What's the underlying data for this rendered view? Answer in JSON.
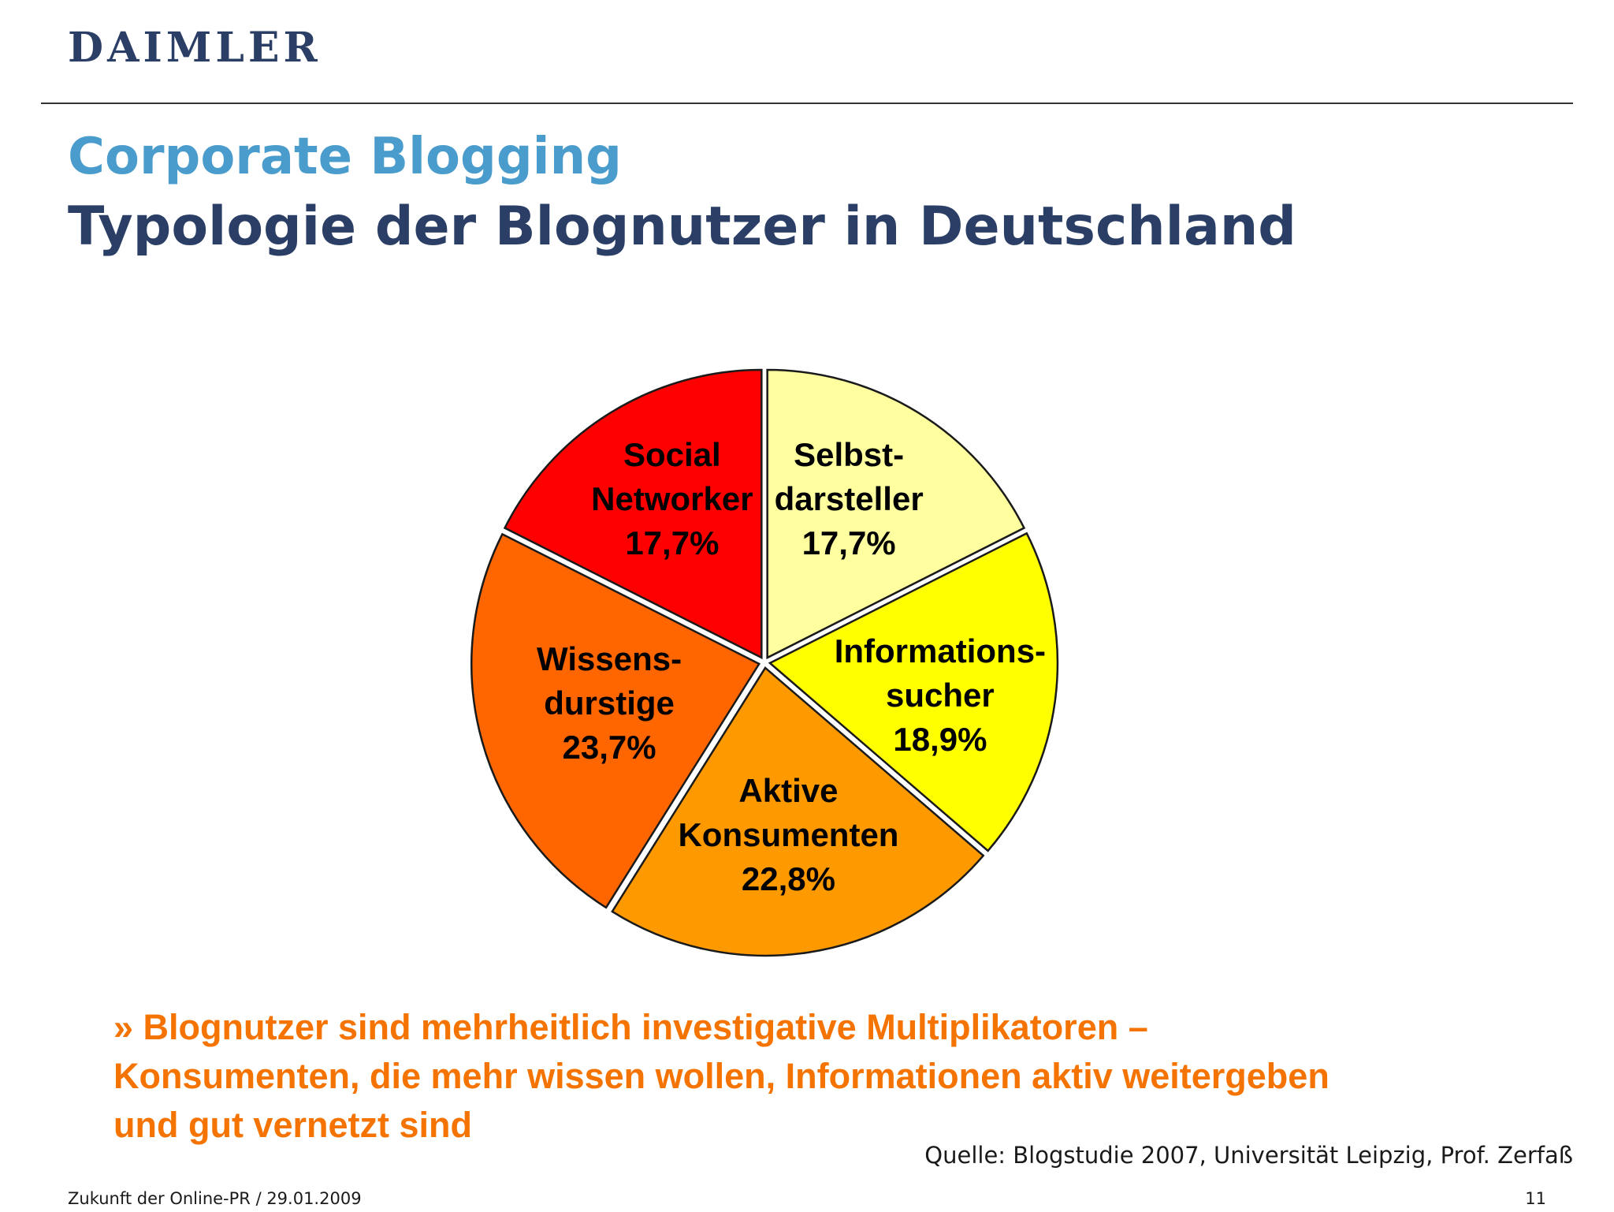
{
  "header": {
    "logo_text": "DAIMLER",
    "title": "Corporate Blogging",
    "subtitle": "Typologie der Blognutzer in Deutschland"
  },
  "chart_data": {
    "type": "pie",
    "start_angle_deg": 0,
    "direction": "clockwise",
    "slices": [
      {
        "label_lines": [
          "Selbst-",
          "darsteller"
        ],
        "value": 17.7,
        "value_label": "17,7%",
        "color": "#ffffa0"
      },
      {
        "label_lines": [
          "Informations-",
          "sucher"
        ],
        "value": 18.9,
        "value_label": "18,9%",
        "color": "#ffff00"
      },
      {
        "label_lines": [
          "Aktive",
          "Konsumenten"
        ],
        "value": 22.8,
        "value_label": "22,8%",
        "color": "#ff9900"
      },
      {
        "label_lines": [
          "Wissens-",
          "durstige"
        ],
        "value": 23.7,
        "value_label": "23,7%",
        "color": "#ff6600"
      },
      {
        "label_lines": [
          "Social",
          "Networker"
        ],
        "value": 17.7,
        "value_label": "17,7%",
        "color": "#ff0000"
      }
    ]
  },
  "conclusion": {
    "lines": [
      "» Blognutzer sind mehrheitlich investigative Multiplikatoren –",
      "Konsumenten, die mehr wissen wollen, Informationen aktiv weitergeben",
      "und gut vernetzt sind"
    ],
    "color": "#f57300"
  },
  "source": "Quelle: Blogstudie 2007, Universität Leipzig, Prof. Zerfaß",
  "footer": {
    "left": "Zukunft der Online-PR / 29.01.2009",
    "page_number": "11"
  }
}
